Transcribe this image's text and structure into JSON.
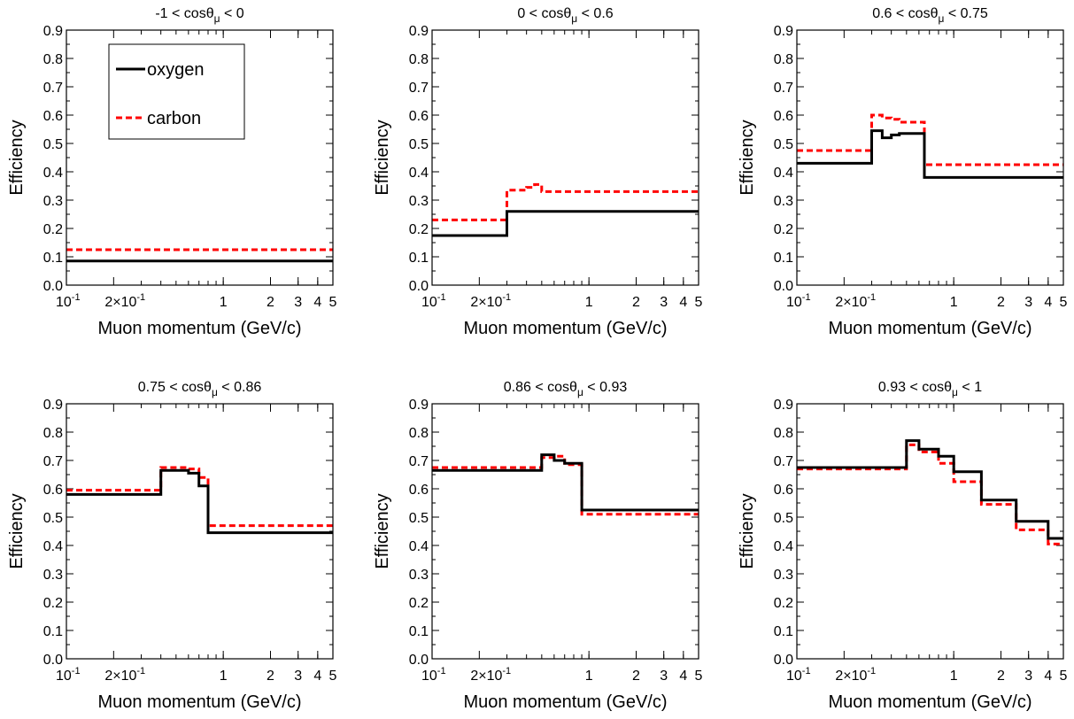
{
  "figure": {
    "legend": {
      "items": [
        {
          "name": "oxygen",
          "color": "#000000",
          "style": "solid"
        },
        {
          "name": "carbon",
          "color": "#ff0000",
          "style": "dashed"
        }
      ]
    }
  },
  "chart_data": [
    {
      "type": "line",
      "title": "-1 < cosθμ < 0",
      "title_parts": [
        "-1 < cosθ",
        "μ",
        " < 0"
      ],
      "xlabel": "Muon momentum (GeV/c)",
      "ylabel": "Efficiency",
      "x_scale": "log",
      "xlim": [
        0.1,
        5
      ],
      "ylim": [
        0,
        0.9
      ],
      "x_ticks": [
        {
          "v": 0.1,
          "label": "10",
          "sup": "-1"
        },
        {
          "v": 0.2,
          "label": "2×10",
          "sup": "-1"
        },
        {
          "v": 1,
          "label": "1"
        },
        {
          "v": 2,
          "label": "2"
        },
        {
          "v": 3,
          "label": "3"
        },
        {
          "v": 4,
          "label": "4"
        },
        {
          "v": 5,
          "label": "5"
        }
      ],
      "y_ticks": [
        "0.0",
        "0.1",
        "0.2",
        "0.3",
        "0.4",
        "0.5",
        "0.6",
        "0.7",
        "0.8",
        "0.9"
      ],
      "legend": "top-left",
      "series": [
        {
          "name": "oxygen",
          "color": "#000000",
          "style": "solid",
          "edges": [
            0.1,
            5
          ],
          "values": [
            0.085
          ]
        },
        {
          "name": "carbon",
          "color": "#ff0000",
          "style": "dashed",
          "edges": [
            0.1,
            5
          ],
          "values": [
            0.125
          ]
        }
      ]
    },
    {
      "type": "line",
      "title": "0 < cosθμ < 0.6",
      "title_parts": [
        "0 < cosθ",
        "μ",
        " < 0.6"
      ],
      "xlabel": "Muon momentum (GeV/c)",
      "ylabel": "Efficiency",
      "x_scale": "log",
      "xlim": [
        0.1,
        5
      ],
      "ylim": [
        0,
        0.9
      ],
      "x_ticks": [
        {
          "v": 0.1,
          "label": "10",
          "sup": "-1"
        },
        {
          "v": 0.2,
          "label": "2×10",
          "sup": "-1"
        },
        {
          "v": 1,
          "label": "1"
        },
        {
          "v": 2,
          "label": "2"
        },
        {
          "v": 3,
          "label": "3"
        },
        {
          "v": 4,
          "label": "4"
        },
        {
          "v": 5,
          "label": "5"
        }
      ],
      "y_ticks": [
        "0.0",
        "0.1",
        "0.2",
        "0.3",
        "0.4",
        "0.5",
        "0.6",
        "0.7",
        "0.8",
        "0.9"
      ],
      "series": [
        {
          "name": "oxygen",
          "color": "#000000",
          "style": "solid",
          "edges": [
            0.1,
            0.3,
            0.4,
            0.5,
            5
          ],
          "values": [
            0.175,
            0.26,
            0.26,
            0.26
          ]
        },
        {
          "name": "carbon",
          "color": "#ff0000",
          "style": "dashed",
          "edges": [
            0.1,
            0.3,
            0.4,
            0.45,
            0.5,
            5
          ],
          "values": [
            0.23,
            0.335,
            0.345,
            0.355,
            0.33
          ]
        }
      ]
    },
    {
      "type": "line",
      "title": "0.6 < cosθμ < 0.75",
      "title_parts": [
        "0.6 < cosθ",
        "μ",
        " < 0.75"
      ],
      "xlabel": "Muon momentum (GeV/c)",
      "ylabel": "Efficiency",
      "x_scale": "log",
      "xlim": [
        0.1,
        5
      ],
      "ylim": [
        0,
        0.9
      ],
      "x_ticks": [
        {
          "v": 0.1,
          "label": "10",
          "sup": "-1"
        },
        {
          "v": 0.2,
          "label": "2×10",
          "sup": "-1"
        },
        {
          "v": 1,
          "label": "1"
        },
        {
          "v": 2,
          "label": "2"
        },
        {
          "v": 3,
          "label": "3"
        },
        {
          "v": 4,
          "label": "4"
        },
        {
          "v": 5,
          "label": "5"
        }
      ],
      "y_ticks": [
        "0.0",
        "0.1",
        "0.2",
        "0.3",
        "0.4",
        "0.5",
        "0.6",
        "0.7",
        "0.8",
        "0.9"
      ],
      "series": [
        {
          "name": "oxygen",
          "color": "#000000",
          "style": "solid",
          "edges": [
            0.1,
            0.3,
            0.35,
            0.4,
            0.45,
            0.55,
            0.65,
            5
          ],
          "values": [
            0.43,
            0.545,
            0.52,
            0.53,
            0.535,
            0.535,
            0.38
          ]
        },
        {
          "name": "carbon",
          "color": "#ff0000",
          "style": "dashed",
          "edges": [
            0.1,
            0.3,
            0.35,
            0.4,
            0.45,
            0.55,
            0.65,
            5
          ],
          "values": [
            0.475,
            0.6,
            0.59,
            0.585,
            0.575,
            0.575,
            0.425
          ]
        }
      ]
    },
    {
      "type": "line",
      "title": "0.75 < cosθμ < 0.86",
      "title_parts": [
        "0.75 < cosθ",
        "μ",
        " < 0.86"
      ],
      "xlabel": "Muon momentum (GeV/c)",
      "ylabel": "Efficiency",
      "x_scale": "log",
      "xlim": [
        0.1,
        5
      ],
      "ylim": [
        0,
        0.9
      ],
      "x_ticks": [
        {
          "v": 0.1,
          "label": "10",
          "sup": "-1"
        },
        {
          "v": 0.2,
          "label": "2×10",
          "sup": "-1"
        },
        {
          "v": 1,
          "label": "1"
        },
        {
          "v": 2,
          "label": "2"
        },
        {
          "v": 3,
          "label": "3"
        },
        {
          "v": 4,
          "label": "4"
        },
        {
          "v": 5,
          "label": "5"
        }
      ],
      "y_ticks": [
        "0.0",
        "0.1",
        "0.2",
        "0.3",
        "0.4",
        "0.5",
        "0.6",
        "0.7",
        "0.8",
        "0.9"
      ],
      "series": [
        {
          "name": "oxygen",
          "color": "#000000",
          "style": "solid",
          "edges": [
            0.1,
            0.4,
            0.5,
            0.6,
            0.7,
            0.8,
            5
          ],
          "values": [
            0.58,
            0.665,
            0.665,
            0.655,
            0.61,
            0.445
          ]
        },
        {
          "name": "carbon",
          "color": "#ff0000",
          "style": "dashed",
          "edges": [
            0.1,
            0.4,
            0.5,
            0.6,
            0.7,
            0.8,
            5
          ],
          "values": [
            0.595,
            0.675,
            0.675,
            0.67,
            0.64,
            0.47
          ]
        }
      ]
    },
    {
      "type": "line",
      "title": "0.86 < cosθμ < 0.93",
      "title_parts": [
        "0.86 < cosθ",
        "μ",
        " < 0.93"
      ],
      "xlabel": "Muon momentum (GeV/c)",
      "ylabel": "Efficiency",
      "x_scale": "log",
      "xlim": [
        0.1,
        5
      ],
      "ylim": [
        0,
        0.9
      ],
      "x_ticks": [
        {
          "v": 0.1,
          "label": "10",
          "sup": "-1"
        },
        {
          "v": 0.2,
          "label": "2×10",
          "sup": "-1"
        },
        {
          "v": 1,
          "label": "1"
        },
        {
          "v": 2,
          "label": "2"
        },
        {
          "v": 3,
          "label": "3"
        },
        {
          "v": 4,
          "label": "4"
        },
        {
          "v": 5,
          "label": "5"
        }
      ],
      "y_ticks": [
        "0.0",
        "0.1",
        "0.2",
        "0.3",
        "0.4",
        "0.5",
        "0.6",
        "0.7",
        "0.8",
        "0.9"
      ],
      "series": [
        {
          "name": "oxygen",
          "color": "#000000",
          "style": "solid",
          "edges": [
            0.1,
            0.5,
            0.6,
            0.7,
            0.8,
            0.9,
            5
          ],
          "values": [
            0.665,
            0.72,
            0.7,
            0.69,
            0.69,
            0.525
          ]
        },
        {
          "name": "carbon",
          "color": "#ff0000",
          "style": "dashed",
          "edges": [
            0.1,
            0.5,
            0.6,
            0.7,
            0.8,
            0.9,
            5
          ],
          "values": [
            0.675,
            0.71,
            0.715,
            0.685,
            0.685,
            0.51
          ]
        }
      ]
    },
    {
      "type": "line",
      "title": "0.93 < cosθμ < 1",
      "title_parts": [
        "0.93 < cosθ",
        "μ",
        " < 1"
      ],
      "xlabel": "Muon momentum (GeV/c)",
      "ylabel": "Efficiency",
      "x_scale": "log",
      "xlim": [
        0.1,
        5
      ],
      "ylim": [
        0,
        0.9
      ],
      "x_ticks": [
        {
          "v": 0.1,
          "label": "10",
          "sup": "-1"
        },
        {
          "v": 0.2,
          "label": "2×10",
          "sup": "-1"
        },
        {
          "v": 1,
          "label": "1"
        },
        {
          "v": 2,
          "label": "2"
        },
        {
          "v": 3,
          "label": "3"
        },
        {
          "v": 4,
          "label": "4"
        },
        {
          "v": 5,
          "label": "5"
        }
      ],
      "y_ticks": [
        "0.0",
        "0.1",
        "0.2",
        "0.3",
        "0.4",
        "0.5",
        "0.6",
        "0.7",
        "0.8",
        "0.9"
      ],
      "series": [
        {
          "name": "oxygen",
          "color": "#000000",
          "style": "solid",
          "edges": [
            0.1,
            0.5,
            0.6,
            0.8,
            1.0,
            1.5,
            2.5,
            4.0,
            5
          ],
          "values": [
            0.675,
            0.77,
            0.74,
            0.715,
            0.66,
            0.56,
            0.485,
            0.425
          ]
        },
        {
          "name": "carbon",
          "color": "#ff0000",
          "style": "dashed",
          "edges": [
            0.1,
            0.5,
            0.6,
            0.8,
            1.0,
            1.5,
            2.5,
            4.0,
            5
          ],
          "values": [
            0.67,
            0.755,
            0.73,
            0.69,
            0.625,
            0.545,
            0.455,
            0.405
          ]
        }
      ]
    }
  ]
}
